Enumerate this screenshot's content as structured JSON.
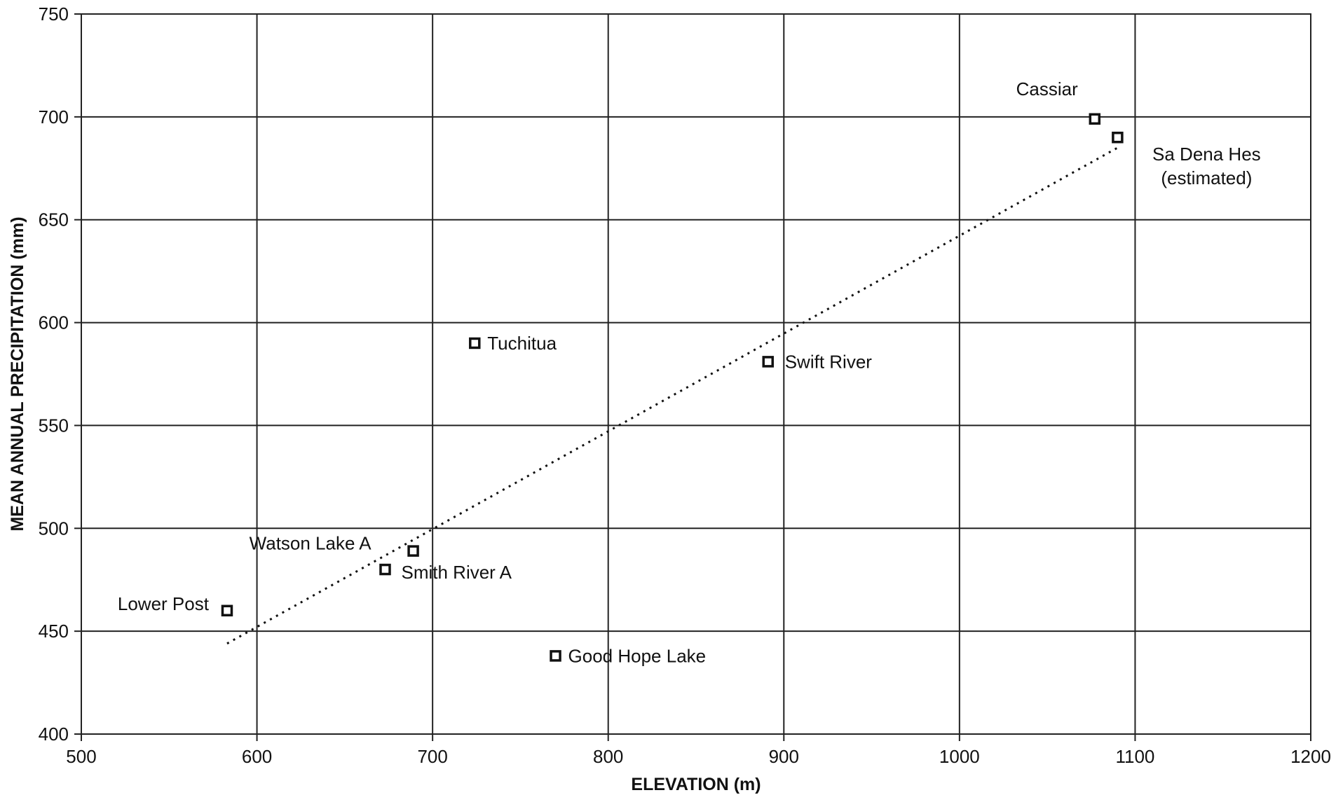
{
  "chart_data": {
    "type": "scatter",
    "title": "",
    "xlabel": "ELEVATION (m)",
    "ylabel": "MEAN ANNUAL PRECIPITATION (mm)",
    "xlim": [
      500,
      1200
    ],
    "ylim": [
      400,
      750
    ],
    "xticks": [
      500,
      600,
      700,
      800,
      900,
      1000,
      1100,
      1200
    ],
    "yticks": [
      400,
      450,
      500,
      550,
      600,
      650,
      700,
      750
    ],
    "grid": true,
    "legend": "none",
    "points": [
      {
        "label": "Cassiar",
        "x": 1077,
        "y": 699
      },
      {
        "label": "Sa Dena Hes\n(estimated)",
        "x": 1090,
        "y": 690
      },
      {
        "label": "Tuchitua",
        "x": 724,
        "y": 590
      },
      {
        "label": "Swift River",
        "x": 891,
        "y": 581
      },
      {
        "label": "Watson Lake A",
        "x": 689,
        "y": 489
      },
      {
        "label": "Smith River A",
        "x": 673,
        "y": 480
      },
      {
        "label": "Lower Post",
        "x": 583,
        "y": 460
      },
      {
        "label": "Good Hope Lake",
        "x": 770,
        "y": 438
      }
    ],
    "trendline": {
      "style": "dotted",
      "x": [
        583,
        1090
      ],
      "y": [
        444,
        685
      ]
    }
  }
}
